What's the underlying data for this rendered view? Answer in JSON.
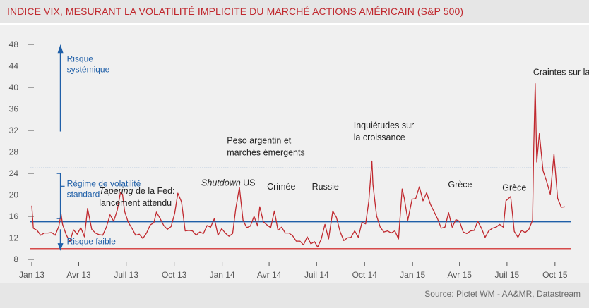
{
  "title": "INDICE VIX, MESURANT LA VOLATILITÉ IMPLICITE DU MARCHÉ ACTIONS AMÉRICAIN (S&P 500)",
  "source": "Source: Pictet WM - AA&MR, Datastream",
  "colors": {
    "series": "#c0282e",
    "reference_lines": "#1f5fa8",
    "low_line": "#d64a4a",
    "title": "#c0282e"
  },
  "chart_data": {
    "type": "line",
    "title": "INDICE VIX, MESURANT LA VOLATILITÉ IMPLICITE DU MARCHÉ ACTIONS AMÉRICAIN (S&P 500)",
    "xlabel": "",
    "ylabel": "",
    "ylim": [
      8,
      48
    ],
    "yticks": [
      8,
      12,
      16,
      20,
      24,
      28,
      32,
      36,
      40,
      44,
      48
    ],
    "xlim": [
      "2013-01-01",
      "2015-10-31"
    ],
    "x_tick_labels": [
      {
        "date": "2013-01-01",
        "label": "Jan 13"
      },
      {
        "date": "2013-04-01",
        "label": "Avr 13"
      },
      {
        "date": "2013-07-01",
        "label": "Juil 13"
      },
      {
        "date": "2013-10-01",
        "label": "Oct 13"
      },
      {
        "date": "2014-01-01",
        "label": "Jan 14"
      },
      {
        "date": "2014-04-01",
        "label": "Avr 14"
      },
      {
        "date": "2014-07-01",
        "label": "Juil 14"
      },
      {
        "date": "2014-10-01",
        "label": "Oct 14"
      },
      {
        "date": "2015-01-01",
        "label": "Jan 15"
      },
      {
        "date": "2015-04-01",
        "label": "Avr 15"
      },
      {
        "date": "2015-07-01",
        "label": "Juil 15"
      },
      {
        "date": "2015-10-01",
        "label": "Oct 15"
      }
    ],
    "grid": false,
    "reference_lines": [
      {
        "y": 25,
        "style": "dotted"
      },
      {
        "y": 15,
        "style": "solid"
      },
      {
        "y": 10,
        "style": "solid"
      }
    ],
    "series": [
      {
        "points": [
          [
            "2013-01-01",
            18.0
          ],
          [
            "2013-01-04",
            13.8
          ],
          [
            "2013-01-11",
            13.4
          ],
          [
            "2013-01-18",
            12.5
          ],
          [
            "2013-01-25",
            12.9
          ],
          [
            "2013-02-01",
            12.9
          ],
          [
            "2013-02-08",
            13.0
          ],
          [
            "2013-02-15",
            12.5
          ],
          [
            "2013-02-22",
            14.2
          ],
          [
            "2013-02-26",
            16.5
          ],
          [
            "2013-03-01",
            14.5
          ],
          [
            "2013-03-08",
            12.6
          ],
          [
            "2013-03-15",
            11.3
          ],
          [
            "2013-03-22",
            13.5
          ],
          [
            "2013-03-29",
            12.7
          ],
          [
            "2013-04-05",
            13.9
          ],
          [
            "2013-04-12",
            12.2
          ],
          [
            "2013-04-18",
            17.5
          ],
          [
            "2013-04-26",
            13.6
          ],
          [
            "2013-05-03",
            12.9
          ],
          [
            "2013-05-10",
            12.6
          ],
          [
            "2013-05-17",
            12.5
          ],
          [
            "2013-05-24",
            14.0
          ],
          [
            "2013-05-31",
            16.3
          ],
          [
            "2013-06-07",
            15.1
          ],
          [
            "2013-06-14",
            17.2
          ],
          [
            "2013-06-20",
            20.5
          ],
          [
            "2013-06-24",
            20.1
          ],
          [
            "2013-06-28",
            16.9
          ],
          [
            "2013-07-05",
            14.9
          ],
          [
            "2013-07-12",
            13.8
          ],
          [
            "2013-07-19",
            12.5
          ],
          [
            "2013-07-26",
            12.7
          ],
          [
            "2013-08-02",
            11.9
          ],
          [
            "2013-08-09",
            12.9
          ],
          [
            "2013-08-16",
            14.4
          ],
          [
            "2013-08-23",
            14.8
          ],
          [
            "2013-08-28",
            16.8
          ],
          [
            "2013-09-04",
            15.6
          ],
          [
            "2013-09-11",
            14.3
          ],
          [
            "2013-09-18",
            13.6
          ],
          [
            "2013-09-25",
            14.1
          ],
          [
            "2013-10-02",
            16.6
          ],
          [
            "2013-10-08",
            20.3
          ],
          [
            "2013-10-15",
            18.7
          ],
          [
            "2013-10-22",
            13.3
          ],
          [
            "2013-10-29",
            13.4
          ],
          [
            "2013-11-05",
            13.3
          ],
          [
            "2013-11-12",
            12.5
          ],
          [
            "2013-11-19",
            13.1
          ],
          [
            "2013-11-26",
            12.8
          ],
          [
            "2013-12-03",
            14.3
          ],
          [
            "2013-12-10",
            14.0
          ],
          [
            "2013-12-17",
            15.6
          ],
          [
            "2013-12-24",
            12.5
          ],
          [
            "2013-12-31",
            13.7
          ],
          [
            "2014-01-07",
            12.9
          ],
          [
            "2014-01-14",
            12.3
          ],
          [
            "2014-01-21",
            12.8
          ],
          [
            "2014-01-27",
            17.4
          ],
          [
            "2014-02-03",
            21.4
          ],
          [
            "2014-02-10",
            15.3
          ],
          [
            "2014-02-17",
            13.9
          ],
          [
            "2014-02-24",
            14.2
          ],
          [
            "2014-03-03",
            16.0
          ],
          [
            "2014-03-10",
            14.2
          ],
          [
            "2014-03-14",
            17.8
          ],
          [
            "2014-03-21",
            15.0
          ],
          [
            "2014-03-28",
            14.4
          ],
          [
            "2014-04-04",
            13.9
          ],
          [
            "2014-04-11",
            17.0
          ],
          [
            "2014-04-18",
            13.4
          ],
          [
            "2014-04-25",
            14.0
          ],
          [
            "2014-05-02",
            12.9
          ],
          [
            "2014-05-09",
            12.9
          ],
          [
            "2014-05-16",
            12.4
          ],
          [
            "2014-05-23",
            11.4
          ],
          [
            "2014-05-30",
            11.4
          ],
          [
            "2014-06-06",
            10.7
          ],
          [
            "2014-06-13",
            12.2
          ],
          [
            "2014-06-20",
            10.9
          ],
          [
            "2014-06-27",
            11.3
          ],
          [
            "2014-07-03",
            10.3
          ],
          [
            "2014-07-10",
            11.8
          ],
          [
            "2014-07-17",
            14.5
          ],
          [
            "2014-07-24",
            11.8
          ],
          [
            "2014-08-01",
            17.0
          ],
          [
            "2014-08-08",
            15.8
          ],
          [
            "2014-08-15",
            13.2
          ],
          [
            "2014-08-22",
            11.5
          ],
          [
            "2014-08-29",
            12.0
          ],
          [
            "2014-09-05",
            12.1
          ],
          [
            "2014-09-12",
            13.3
          ],
          [
            "2014-09-19",
            12.1
          ],
          [
            "2014-09-26",
            14.9
          ],
          [
            "2014-10-03",
            14.6
          ],
          [
            "2014-10-09",
            18.8
          ],
          [
            "2014-10-15",
            26.3
          ],
          [
            "2014-10-17",
            21.9
          ],
          [
            "2014-10-24",
            16.1
          ],
          [
            "2014-10-31",
            14.0
          ],
          [
            "2014-11-07",
            13.1
          ],
          [
            "2014-11-14",
            13.3
          ],
          [
            "2014-11-21",
            12.9
          ],
          [
            "2014-11-28",
            13.3
          ],
          [
            "2014-12-05",
            11.8
          ],
          [
            "2014-12-12",
            21.1
          ],
          [
            "2014-12-16",
            19.4
          ],
          [
            "2014-12-23",
            15.3
          ],
          [
            "2014-12-31",
            19.2
          ],
          [
            "2015-01-07",
            19.3
          ],
          [
            "2015-01-14",
            21.5
          ],
          [
            "2015-01-21",
            18.9
          ],
          [
            "2015-01-28",
            20.4
          ],
          [
            "2015-02-04",
            18.3
          ],
          [
            "2015-02-11",
            16.9
          ],
          [
            "2015-02-18",
            15.5
          ],
          [
            "2015-02-25",
            13.8
          ],
          [
            "2015-03-04",
            14.0
          ],
          [
            "2015-03-11",
            16.7
          ],
          [
            "2015-03-18",
            14.0
          ],
          [
            "2015-03-25",
            15.4
          ],
          [
            "2015-04-01",
            15.1
          ],
          [
            "2015-04-08",
            13.1
          ],
          [
            "2015-04-15",
            12.8
          ],
          [
            "2015-04-22",
            13.3
          ],
          [
            "2015-04-29",
            13.4
          ],
          [
            "2015-05-06",
            15.1
          ],
          [
            "2015-05-13",
            13.8
          ],
          [
            "2015-05-20",
            12.1
          ],
          [
            "2015-05-27",
            13.3
          ],
          [
            "2015-06-03",
            13.8
          ],
          [
            "2015-06-10",
            14.0
          ],
          [
            "2015-06-17",
            14.5
          ],
          [
            "2015-06-24",
            14.0
          ],
          [
            "2015-06-29",
            18.9
          ],
          [
            "2015-07-08",
            19.7
          ],
          [
            "2015-07-15",
            13.2
          ],
          [
            "2015-07-22",
            12.1
          ],
          [
            "2015-07-29",
            13.4
          ],
          [
            "2015-08-05",
            13.0
          ],
          [
            "2015-08-12",
            13.6
          ],
          [
            "2015-08-19",
            15.3
          ],
          [
            "2015-08-21",
            28.0
          ],
          [
            "2015-08-24",
            40.7
          ],
          [
            "2015-08-27",
            26.1
          ],
          [
            "2015-09-01",
            31.4
          ],
          [
            "2015-09-08",
            24.5
          ],
          [
            "2015-09-15",
            22.5
          ],
          [
            "2015-09-22",
            20.1
          ],
          [
            "2015-09-29",
            27.6
          ],
          [
            "2015-10-06",
            19.4
          ],
          [
            "2015-10-13",
            17.7
          ],
          [
            "2015-10-20",
            17.8
          ]
        ]
      }
    ],
    "annotations": [
      {
        "id": "risque_systemique",
        "lines": [
          "Risque",
          "systémique"
        ],
        "x": "2013-03-01",
        "y": 44.8
      },
      {
        "id": "regime",
        "lines": [
          "Régime de volatilité",
          "standard"
        ],
        "x": "2013-03-01",
        "y": 21.6
      },
      {
        "id": "risque_faible",
        "lines": [
          "Risque faible"
        ],
        "x": "2013-03-01",
        "y": 10.8
      },
      {
        "id": "tapering",
        "lines": [
          "Tapering de la Fed:",
          "lancement attendu"
        ],
        "x": "2013-05-10",
        "y": 20.2
      },
      {
        "id": "shutdown",
        "lines": [
          "Shutdown US"
        ],
        "x": "2013-11-22",
        "y": 21.7
      },
      {
        "id": "peso",
        "lines": [
          "Peso argentin et",
          "marchés émergents"
        ],
        "x": "2014-01-10",
        "y": 29.6
      },
      {
        "id": "crimee",
        "lines": [
          "Crimée"
        ],
        "x": "2014-03-28",
        "y": 21.0
      },
      {
        "id": "russie",
        "lines": [
          "Russie"
        ],
        "x": "2014-06-22",
        "y": 21.0
      },
      {
        "id": "inquietudes",
        "lines": [
          "Inquiétudes sur",
          "la croissance"
        ],
        "x": "2014-09-10",
        "y": 32.4
      },
      {
        "id": "grece1",
        "lines": [
          "Grèce"
        ],
        "x": "2015-03-10",
        "y": 21.4
      },
      {
        "id": "grece2",
        "lines": [
          "Grèce"
        ],
        "x": "2015-06-22",
        "y": 20.8
      },
      {
        "id": "chine",
        "lines": [
          "Craintes sur la Chine"
        ],
        "x": "2015-08-20",
        "y": 42.3
      }
    ]
  }
}
